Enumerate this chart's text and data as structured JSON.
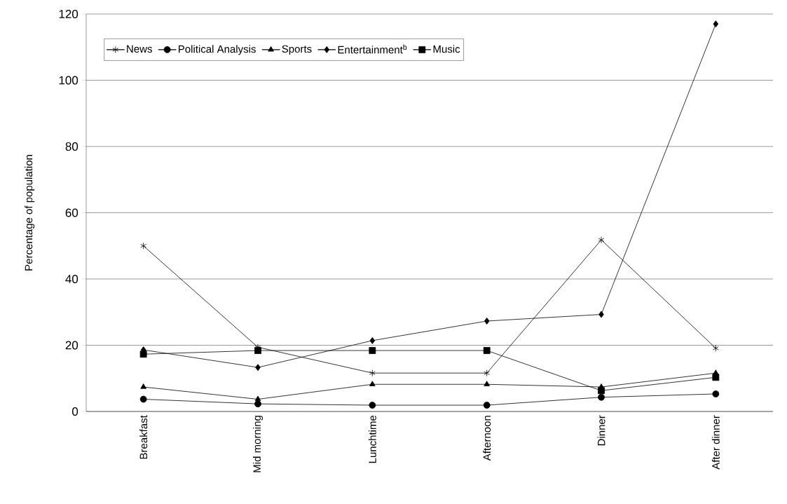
{
  "chart_data": {
    "type": "line",
    "ylabel": "Percentage of population",
    "categories": [
      "Breakfast",
      "Mid morning",
      "Lunchtime",
      "Afternoon",
      "Dinner",
      "After dinner"
    ],
    "series": [
      {
        "name": "News",
        "color": "#000000",
        "marker": "cross",
        "values": [
          50,
          19.4,
          11.6,
          11.6,
          51.8,
          19.1
        ]
      },
      {
        "name": "Political Analysis",
        "color": "#000000",
        "marker": "circle",
        "values": [
          3.7,
          2.3,
          1.9,
          1.9,
          4.3,
          5.3
        ]
      },
      {
        "name": "Sports",
        "color": "#000000",
        "marker": "triangle",
        "values": [
          7.4,
          3.7,
          8.2,
          8.2,
          7.4,
          11.6
        ]
      },
      {
        "name": "Entertainment$^{b}$",
        "color": "#000000",
        "marker": "diamond",
        "values": [
          18.6,
          13.3,
          21.4,
          27.3,
          29.3,
          117
        ]
      },
      {
        "name": "Music",
        "color": "#000000",
        "marker": "square",
        "values": [
          17.3,
          18.4,
          18.4,
          18.4,
          6.3,
          10.3
        ]
      }
    ],
    "ylim": [
      0,
      120
    ],
    "yticks": [
      0,
      20,
      40,
      60,
      80,
      100,
      120
    ],
    "grid": "y",
    "legend": "top",
    "line_style": "solid"
  }
}
